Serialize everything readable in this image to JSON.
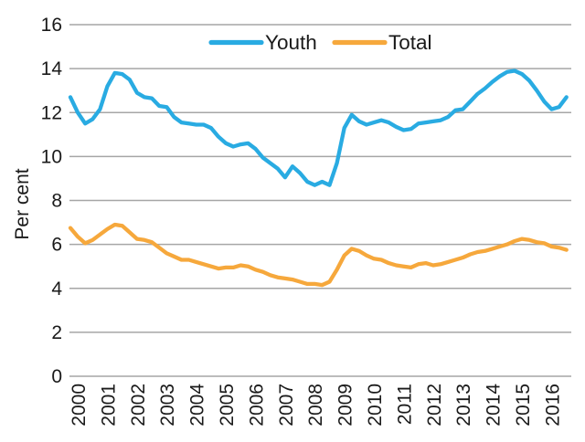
{
  "chart_data": {
    "type": "line",
    "title": "",
    "ylabel": "Per cent",
    "xlabel": "",
    "ylim": [
      0,
      16
    ],
    "y_ticks": [
      0,
      2,
      4,
      6,
      8,
      10,
      12,
      14,
      16
    ],
    "x_ticks": [
      2000,
      2001,
      2002,
      2003,
      2004,
      2005,
      2006,
      2007,
      2008,
      2009,
      2010,
      2011,
      2012,
      2013,
      2014,
      2015,
      2016
    ],
    "grid": "horizontal",
    "legend_position": "top-center",
    "colors": {
      "youth": "#29ABE2",
      "total": "#F6A83C",
      "gridline": "#A6A6A6",
      "text": "#1A1A1A",
      "background": "#FFFFFF"
    },
    "x": [
      2000,
      2000.25,
      2000.5,
      2000.75,
      2001,
      2001.25,
      2001.5,
      2001.75,
      2002,
      2002.25,
      2002.5,
      2002.75,
      2003,
      2003.25,
      2003.5,
      2003.75,
      2004,
      2004.25,
      2004.5,
      2004.75,
      2005,
      2005.25,
      2005.5,
      2005.75,
      2006,
      2006.25,
      2006.5,
      2006.75,
      2007,
      2007.25,
      2007.5,
      2007.75,
      2008,
      2008.25,
      2008.5,
      2008.75,
      2009,
      2009.25,
      2009.5,
      2009.75,
      2010,
      2010.25,
      2010.5,
      2010.75,
      2011,
      2011.25,
      2011.5,
      2011.75,
      2012,
      2012.25,
      2012.5,
      2012.75,
      2013,
      2013.25,
      2013.5,
      2013.75,
      2014,
      2014.25,
      2014.5,
      2014.75,
      2015,
      2015.25,
      2015.5,
      2015.75,
      2016,
      2016.25,
      2016.5,
      2016.75
    ],
    "series": [
      {
        "name": "Youth",
        "color": "#29ABE2",
        "values": [
          12.7,
          12.0,
          11.5,
          11.7,
          12.15,
          13.2,
          13.8,
          13.75,
          13.5,
          12.9,
          12.7,
          12.65,
          12.3,
          12.25,
          11.8,
          11.55,
          11.5,
          11.45,
          11.45,
          11.3,
          10.9,
          10.6,
          10.45,
          10.55,
          10.6,
          10.35,
          9.95,
          9.7,
          9.45,
          9.05,
          9.55,
          9.25,
          8.85,
          8.7,
          8.85,
          8.7,
          9.7,
          11.3,
          11.9,
          11.6,
          11.45,
          11.55,
          11.65,
          11.55,
          11.35,
          11.2,
          11.25,
          11.5,
          11.55,
          11.6,
          11.65,
          11.8,
          12.1,
          12.15,
          12.5,
          12.85,
          13.1,
          13.4,
          13.65,
          13.85,
          13.9,
          13.75,
          13.45,
          13.0,
          12.5,
          12.15,
          12.25,
          12.7
        ]
      },
      {
        "name": "Total",
        "color": "#F6A83C",
        "values": [
          6.75,
          6.35,
          6.05,
          6.2,
          6.45,
          6.7,
          6.9,
          6.85,
          6.55,
          6.25,
          6.2,
          6.1,
          5.85,
          5.6,
          5.45,
          5.3,
          5.3,
          5.2,
          5.1,
          5.0,
          4.9,
          4.95,
          4.95,
          5.05,
          5.0,
          4.85,
          4.75,
          4.6,
          4.5,
          4.45,
          4.4,
          4.3,
          4.2,
          4.2,
          4.15,
          4.3,
          4.85,
          5.5,
          5.8,
          5.7,
          5.5,
          5.35,
          5.3,
          5.15,
          5.05,
          5.0,
          4.95,
          5.1,
          5.15,
          5.05,
          5.1,
          5.2,
          5.3,
          5.4,
          5.55,
          5.65,
          5.7,
          5.8,
          5.9,
          6.0,
          6.15,
          6.25,
          6.2,
          6.1,
          6.05,
          5.9,
          5.85,
          5.75
        ]
      }
    ]
  }
}
